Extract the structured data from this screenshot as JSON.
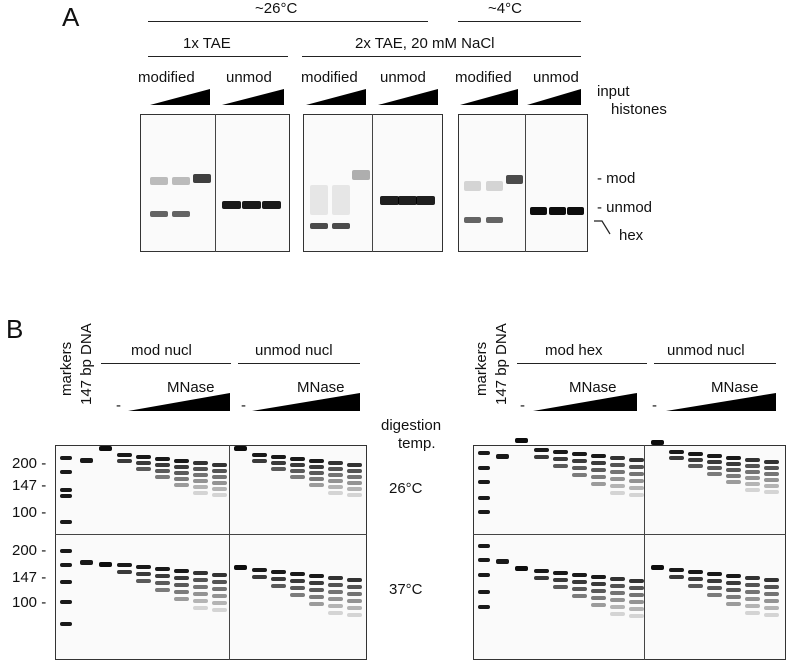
{
  "panel_a": {
    "letter": "A",
    "temp_warm": "~26°C",
    "temp_cold": "~4°C",
    "buffer_1": "1x TAE",
    "buffer_2": "2x TAE, 20 mM NaCl",
    "lane_modified": "modified",
    "lane_unmod": "unmod",
    "input_label_1": "input",
    "input_label_2": "histones",
    "band_mod": "- mod",
    "band_unmod": "- unmod",
    "band_hex": "hex"
  },
  "panel_b": {
    "letter": "B",
    "markers": "markers",
    "dna": "147 bp DNA",
    "mod_nucl": "mod nucl",
    "unmod_nucl": "unmod nucl",
    "mod_hex": "mod hex",
    "enzyme": "MNase",
    "dash": "-",
    "digestion_1": "digestion",
    "digestion_2": "temp.",
    "temp_26": "26°C",
    "temp_37": "37°C",
    "size_200": "200 -",
    "size_147": "147 -",
    "size_100": "100 -"
  }
}
